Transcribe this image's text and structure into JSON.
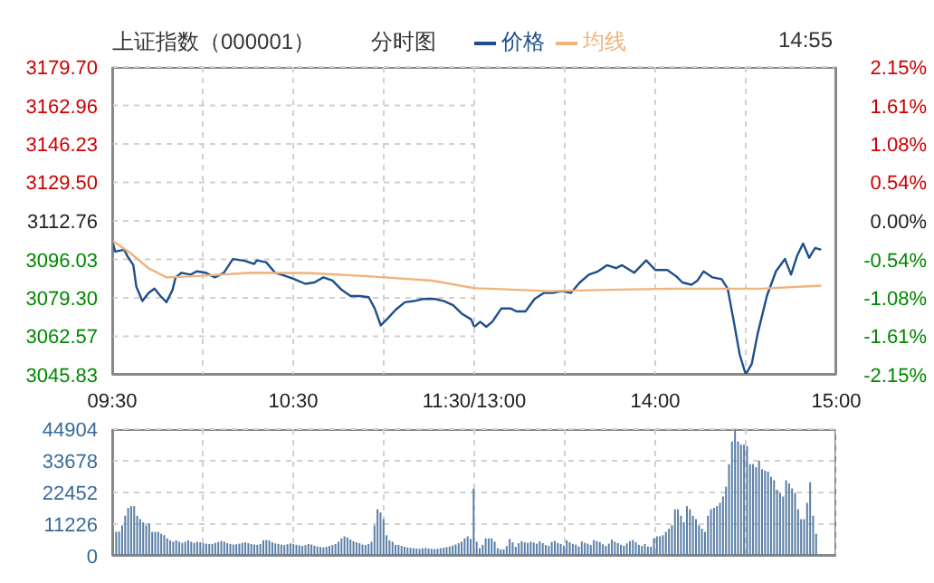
{
  "chart_data": [
    {
      "type": "line",
      "title": "上证指数（000001）",
      "annotations": [
        "分时图"
      ],
      "legend": "top",
      "grid": true,
      "marker": "none",
      "line_style": "solid",
      "xlim": [
        9.5,
        11.5
      ],
      "xticks": [
        {
          "value": 9.5,
          "label": "09:30"
        },
        {
          "value": 10,
          "label": null
        },
        {
          "value": 10.5,
          "label": "10:30"
        },
        {
          "value": 11,
          "label": null
        },
        {
          "value": 11.5,
          "label": "11:30/13:00"
        }
      ],
      "ylim": [
        3045.83,
        3179.7
      ],
      "yticks": [
        {
          "value": 3179.7,
          "label": "3179.70"
        },
        3162.96,
        3146.23,
        {
          "value": 3129.5,
          "label": "3129.50"
        },
        3112.76,
        3096.03,
        {
          "value": 3079.3,
          "label": "3079.30"
        },
        3062.57,
        3045.83
      ],
      "series": [
        {
          "name": "价格",
          "color": "#1e4e8c",
          "x": [
            9.5,
            9.5167,
            9.5667,
            9.5833,
            9.6167,
            9.6333,
            9.6667,
            9.7,
            9.7333,
            9.7667,
            9.8,
            9.8333,
            9.85,
            9.8833,
            9.9333,
            9.9667,
            10.0167,
            10.0667,
            10.1167,
            10.1667,
            10.2333,
            10.2833,
            10.3,
            10.35,
            10.4,
            10.45,
            10.5,
            10.5667,
            10.6167,
            10.6667,
            10.7167,
            10.7667,
            10.8167,
            10.8667,
            10.9167,
            10.95,
            10.9833,
            11.0167,
            11.0667,
            11.1167,
            11.1667,
            11.2167,
            11.2833,
            11.3333,
            11.3833,
            11.4333,
            11.4833,
            11.5
          ],
          "values": [
            3104.2,
            3099.4,
            3100.2,
            3097.5,
            3093.5,
            3084.1,
            3077.9,
            3081.4,
            3083.3,
            3080.1,
            3077.4,
            3082.8,
            3088.2,
            3090.2,
            3089.4,
            3090.8,
            3090.2,
            3088.2,
            3090.2,
            3096.2,
            3095.4,
            3094.0,
            3095.6,
            3094.8,
            3090.2,
            3089.0,
            3087.6,
            3085.4,
            3086.0,
            3088.2,
            3086.8,
            3082.8,
            3080.1,
            3080.1,
            3079.6,
            3074.7,
            3067.3,
            3069.9,
            3074.2,
            3077.4,
            3077.9,
            3078.8,
            3078.8,
            3077.9,
            3076.1,
            3072.3,
            3069.9,
            3066.7
          ]
        },
        {
          "name": "均线",
          "color": "#f2b27a",
          "x": [
            9.5,
            9.6,
            9.7,
            9.8,
            9.9333,
            10.2667,
            10.6,
            10.9333,
            11.2667,
            11.5
          ],
          "values": [
            3104.2,
            3098.8,
            3092.2,
            3088.2,
            3088.6,
            3090.2,
            3090.0,
            3088.6,
            3086.8,
            3083.5
          ]
        }
      ]
    },
    {
      "type": "line",
      "annotations": [
        "14:55"
      ],
      "grid": true,
      "marker": "none",
      "line_style": "solid",
      "tick_labels": "x",
      "xlim": [
        13,
        15
      ],
      "xticks": [
        {
          "value": 13.5,
          "label": null
        },
        {
          "value": 14,
          "label": "14:00"
        },
        {
          "value": 14.5,
          "label": null
        },
        {
          "value": 15,
          "label": "15:00"
        }
      ],
      "ylim": [
        3045.83,
        3179.7
      ],
      "yticks": [
        3179.7,
        3162.96,
        3146.23,
        3129.5,
        3112.76,
        3096.03,
        3079.3,
        3062.57,
        3045.83
      ],
      "y2lim": [
        -2.15,
        2.15
      ],
      "y2ticks": [
        {
          "value": 2.15,
          "label": "2.15%"
        },
        {
          "value": 1.61,
          "label": "1.61%"
        },
        {
          "value": 1.08,
          "label": "1.08%"
        },
        {
          "value": 0.54,
          "label": "0.54%"
        },
        {
          "value": 0,
          "label": "0.00%"
        },
        {
          "value": -0.54,
          "label": "-0.54%"
        },
        {
          "value": -1.08,
          "label": "-1.08%"
        },
        {
          "value": -1.61,
          "label": "-1.61%"
        },
        {
          "value": -2.15,
          "label": "-2.15%"
        }
      ],
      "series": [
        {
          "color": "#1e4e8c",
          "x": [
            13.0,
            13.0333,
            13.0667,
            13.1,
            13.15,
            13.2,
            13.2333,
            13.2833,
            13.3333,
            13.3833,
            13.4333,
            13.4833,
            13.5333,
            13.5833,
            13.6333,
            13.6833,
            13.7333,
            13.7833,
            13.8167,
            13.8833,
            13.95,
            14.0,
            14.0667,
            14.1167,
            14.15,
            14.2,
            14.2333,
            14.2667,
            14.3167,
            14.3667,
            14.4,
            14.4333,
            14.4667,
            14.5,
            14.5333,
            14.5667,
            14.6167,
            14.6667,
            14.7167,
            14.75,
            14.7833,
            14.8167,
            14.85,
            14.8833,
            14.9167
          ],
          "values": [
            3066.7,
            3068.9,
            3066.7,
            3068.9,
            3074.7,
            3074.7,
            3073.4,
            3073.4,
            3078.8,
            3081.4,
            3081.4,
            3082.2,
            3081.4,
            3086.0,
            3089.4,
            3090.8,
            3093.5,
            3092.2,
            3093.5,
            3090.2,
            3095.6,
            3091.4,
            3091.4,
            3088.6,
            3086.0,
            3085.0,
            3086.8,
            3090.8,
            3088.2,
            3087.4,
            3083.3,
            3069.3,
            3054.6,
            3046.0,
            3050.6,
            3064.0,
            3080.1,
            3090.8,
            3096.2,
            3089.4,
            3097.5,
            3102.9,
            3096.7,
            3101.0,
            3100.2
          ]
        },
        {
          "color": "#f2b27a",
          "x": [
            13.0,
            13.0833,
            13.4167,
            13.75,
            14.0833,
            14.5833,
            14.9167
          ],
          "values": [
            3083.5,
            3083.3,
            3082.2,
            3082.8,
            3083.3,
            3083.3,
            3084.6
          ]
        }
      ]
    },
    {
      "type": "bar",
      "grid": true,
      "tick_labels": "y",
      "color": "#5b7fa6",
      "categories": [
        null,
        null,
        null,
        null,
        null,
        null,
        null,
        null,
        null,
        null,
        null,
        null,
        null,
        null,
        null,
        null,
        null,
        null,
        null,
        null,
        null,
        null,
        null,
        null,
        null,
        null,
        null,
        null,
        null,
        null,
        null,
        null,
        null,
        null,
        null,
        null,
        null,
        null,
        null,
        null,
        null,
        null,
        null,
        null,
        null,
        null,
        null,
        null,
        null,
        null,
        null,
        null,
        null,
        null,
        null,
        null,
        null,
        null,
        null,
        null,
        null,
        null,
        null,
        null,
        null,
        null,
        null,
        null,
        null,
        null,
        null,
        null,
        null,
        null,
        null,
        null,
        null,
        null,
        null,
        null,
        null,
        null,
        null,
        null,
        null,
        null,
        null,
        null,
        null,
        null,
        null,
        null,
        null,
        null,
        null,
        null,
        null,
        null,
        null,
        null,
        null,
        null,
        null,
        null,
        null,
        null,
        null,
        null,
        null,
        null,
        null,
        null,
        null,
        null,
        null,
        null,
        null,
        null,
        null,
        null,
        null,
        null,
        null,
        null,
        null,
        null,
        null,
        null,
        null,
        null,
        null,
        null,
        null,
        null,
        null,
        null,
        null,
        null,
        null,
        null,
        null,
        null,
        null,
        null,
        null,
        null,
        null,
        null,
        null,
        null,
        null,
        null,
        null,
        null,
        null,
        null,
        null,
        null,
        null,
        null,
        null,
        null,
        null,
        null,
        null,
        null,
        null,
        null,
        null,
        null,
        null,
        null,
        null,
        null,
        null,
        null,
        null,
        null,
        null,
        null,
        null,
        null,
        null,
        null,
        null,
        null,
        null,
        null,
        null,
        null,
        null,
        null,
        null,
        null,
        null,
        null,
        null,
        null,
        null,
        null,
        null,
        null,
        null,
        null,
        null,
        null,
        null,
        null,
        null,
        null,
        null,
        null,
        null,
        null,
        null,
        null,
        null,
        null,
        null,
        null,
        null,
        null,
        null,
        null,
        null,
        null,
        null,
        null,
        null,
        null,
        null,
        null,
        null,
        null,
        null,
        null,
        null,
        null,
        null,
        null,
        null
      ],
      "ylim": [
        0,
        44904
      ],
      "yticks": [
        0,
        11226,
        22452,
        33678,
        44904
      ],
      "values": [
        8500,
        8500,
        8600,
        10800,
        14200,
        17000,
        17600,
        17600,
        14200,
        13000,
        11900,
        10800,
        11500,
        8500,
        8500,
        8500,
        7800,
        7300,
        6200,
        5500,
        5000,
        5500,
        5000,
        4600,
        5000,
        5500,
        5000,
        4600,
        5000,
        4800,
        4500,
        4300,
        4200,
        4200,
        4600,
        4900,
        5300,
        5000,
        4500,
        4200,
        4000,
        4100,
        4300,
        4600,
        4800,
        4500,
        4200,
        4000,
        3900,
        4200,
        5500,
        5600,
        5400,
        4800,
        4400,
        4200,
        4000,
        3800,
        4100,
        4400,
        4200,
        3900,
        3700,
        3500,
        3800,
        4200,
        4000,
        3600,
        3300,
        3100,
        3000,
        3200,
        3500,
        3800,
        4200,
        5000,
        6200,
        6900,
        6500,
        5800,
        5200,
        4800,
        4500,
        4000,
        3800,
        4200,
        5000,
        10800,
        16500,
        15400,
        13000,
        7300,
        5500,
        5000,
        3900,
        3900,
        3500,
        3200,
        3000,
        2800,
        2700,
        2600,
        2500,
        2700,
        2800,
        2600,
        2500,
        2400,
        2500,
        2700,
        2900,
        3100,
        3300,
        3600,
        4000,
        4500,
        5000,
        6200,
        6900,
        6000,
        23800,
        5000,
        2700,
        3900,
        6200,
        6200,
        6200,
        5000,
        2700,
        2300,
        2300,
        3500,
        6000,
        4800,
        3200,
        4500,
        5200,
        4800,
        4600,
        5000,
        4700,
        4300,
        5100,
        4500,
        3800,
        3500,
        4900,
        5300,
        4600,
        4200,
        3600,
        5500,
        4800,
        4200,
        4000,
        3300,
        5100,
        4600,
        4300,
        3800,
        5600,
        5200,
        4900,
        4100,
        3500,
        4300,
        5800,
        5000,
        4500,
        3900,
        3600,
        4400,
        5200,
        5600,
        4800,
        3900,
        3500,
        4200,
        3300,
        3200,
        6200,
        6900,
        6900,
        7300,
        8500,
        9600,
        10800,
        16500,
        16500,
        14200,
        11900,
        17600,
        16500,
        14200,
        13000,
        10800,
        9600,
        8500,
        14200,
        16500,
        17000,
        17600,
        18800,
        21000,
        24500,
        32500,
        40500,
        44800,
        40500,
        39400,
        39400,
        38900,
        32500,
        32500,
        31400,
        33700,
        30700,
        30200,
        29800,
        28000,
        26800,
        23400,
        22300,
        21000,
        26800,
        25700,
        23900,
        22300,
        16500,
        13000,
        13000,
        18800,
        26100,
        14200,
        7800,
        null,
        null,
        null,
        null,
        null,
        null
      ]
    }
  ]
}
